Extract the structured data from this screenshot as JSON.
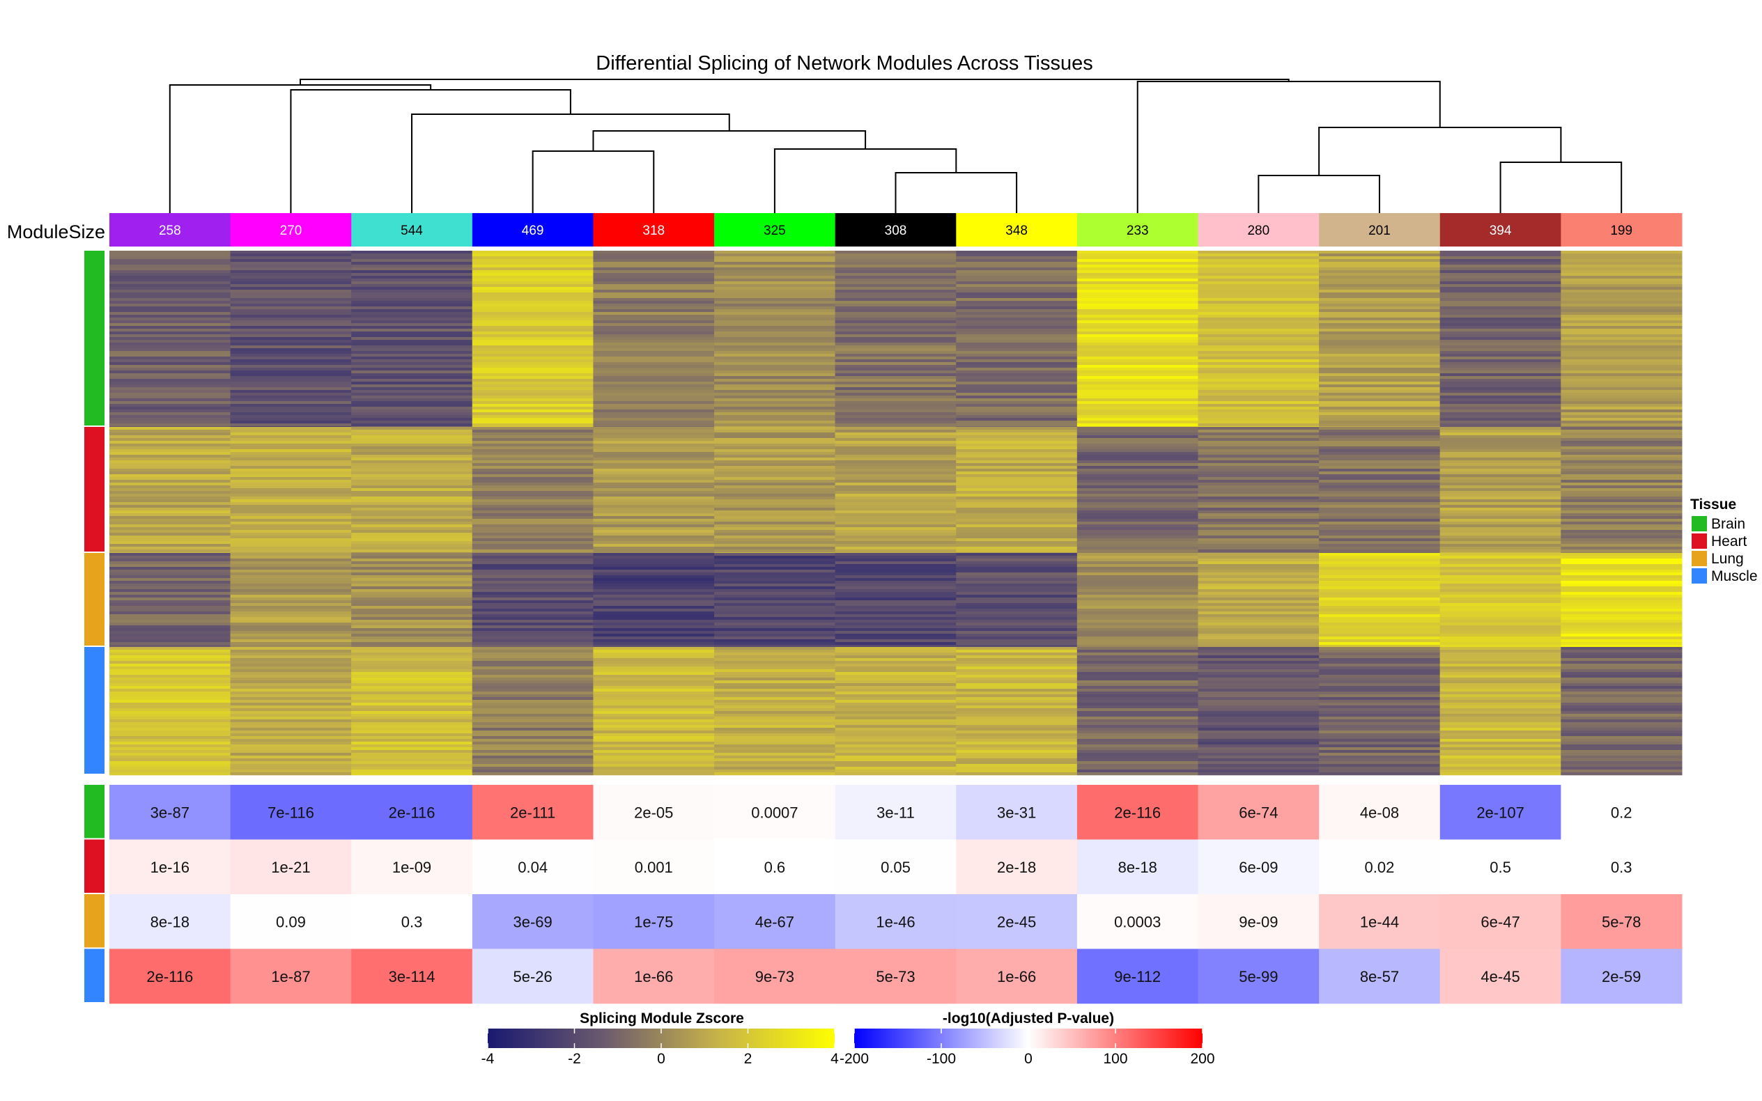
{
  "chart_data": {
    "type": "heatmap",
    "title": "Differential Splicing of Network Modules Across Tissues",
    "row_annotation_label": "ModuleSize",
    "modules": [
      {
        "color": "#A020F0",
        "size": "258"
      },
      {
        "color": "#FF00FF",
        "size": "270"
      },
      {
        "color": "#40E0D0",
        "size": "544"
      },
      {
        "color": "#0000FF",
        "size": "469"
      },
      {
        "color": "#FF0000",
        "size": "318"
      },
      {
        "color": "#00FF00",
        "size": "325"
      },
      {
        "color": "#000000",
        "size": "308"
      },
      {
        "color": "#FFFF00",
        "size": "348"
      },
      {
        "color": "#ADFF2F",
        "size": "233"
      },
      {
        "color": "#FFC0CB",
        "size": "280"
      },
      {
        "color": "#D2B48C",
        "size": "201"
      },
      {
        "color": "#A52A2A",
        "size": "394"
      },
      {
        "color": "#FA8072",
        "size": "199"
      }
    ],
    "tissues": [
      {
        "name": "Brain",
        "color": "#22BB22"
      },
      {
        "name": "Heart",
        "color": "#DD1122"
      },
      {
        "name": "Lung",
        "color": "#E8A31C"
      },
      {
        "name": "Muscle",
        "color": "#3385FF"
      }
    ],
    "tissue_legend_title": "Tissue",
    "zscore_matrix": [
      [
        -1.2,
        -1.7,
        -1.6,
        2.2,
        -0.3,
        0.2,
        -0.6,
        -0.8,
        2.8,
        1.8,
        0.8,
        -1.1,
        0.6
      ],
      [
        1.1,
        1.2,
        1.1,
        -0.2,
        0.6,
        0.6,
        0.8,
        1.2,
        -1.0,
        -0.6,
        -0.6,
        0.8,
        -0.2
      ],
      [
        -1.0,
        0.6,
        0.3,
        -1.8,
        -2.3,
        -2.2,
        -2.0,
        -1.8,
        0.3,
        1.2,
        2.6,
        2.0,
        3.0
      ],
      [
        2.0,
        1.2,
        1.8,
        -0.3,
        1.6,
        1.3,
        1.4,
        1.5,
        -1.0,
        -1.5,
        -1.0,
        1.5,
        -1.0
      ]
    ],
    "pvalue_labels": [
      [
        "3e-87",
        "7e-116",
        "2e-116",
        "2e-111",
        "2e-05",
        "0.0007",
        "3e-11",
        "3e-31",
        "2e-116",
        "6e-74",
        "4e-08",
        "2e-107",
        "0.2"
      ],
      [
        "1e-16",
        "1e-21",
        "1e-09",
        "0.04",
        "0.001",
        "0.6",
        "0.05",
        "2e-18",
        "8e-18",
        "6e-09",
        "0.02",
        "0.5",
        "0.3"
      ],
      [
        "8e-18",
        "0.09",
        "0.3",
        "3e-69",
        "1e-75",
        "4e-67",
        "1e-46",
        "2e-45",
        "0.0003",
        "9e-09",
        "1e-44",
        "6e-47",
        "5e-78"
      ],
      [
        "2e-116",
        "1e-87",
        "3e-114",
        "5e-26",
        "1e-66",
        "9e-73",
        "5e-73",
        "1e-66",
        "9e-112",
        "5e-99",
        "8e-57",
        "4e-45",
        "2e-59"
      ]
    ],
    "signed_log10p": [
      [
        -86,
        -115,
        -115,
        110,
        4,
        3,
        -10,
        -30,
        115,
        73,
        7,
        -106,
        0
      ],
      [
        15,
        20,
        8,
        1,
        2,
        0,
        -1,
        17,
        -17,
        -8,
        -1,
        0,
        0
      ],
      [
        -17,
        1,
        0,
        -68,
        -74,
        -66,
        -45,
        -44,
        3,
        8,
        43,
        46,
        77
      ],
      [
        115,
        86,
        113,
        -25,
        65,
        72,
        72,
        65,
        -111,
        -98,
        -56,
        44,
        -58
      ]
    ],
    "zscore_legend": {
      "title": "Splicing Module Zscore",
      "ticks": [
        "-4",
        "-2",
        "0",
        "2",
        "4"
      ],
      "range": [
        -4,
        4
      ],
      "colors": [
        "#191970",
        "#6B5A6E",
        "#C8B448",
        "#FFFF00"
      ]
    },
    "pvalue_legend": {
      "title": "-log10(Adjusted P-value)",
      "ticks": [
        "-200",
        "-100",
        "0",
        "100",
        "200"
      ],
      "range": [
        -200,
        200
      ],
      "colors": [
        "#0000FF",
        "#FFFFFF",
        "#FF0000"
      ]
    }
  }
}
